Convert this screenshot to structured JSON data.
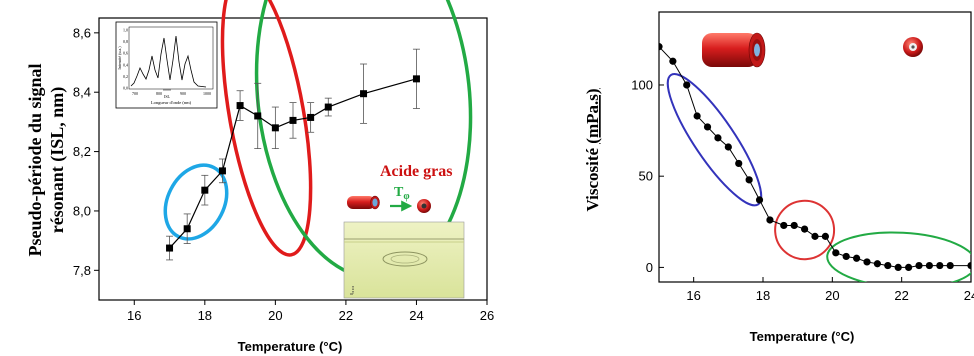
{
  "chart_data": [
    {
      "type": "scatter",
      "title": "",
      "xlabel": "Temperature (°C)",
      "ylabel": "Pseudo-période du signal résonant (ISL, nm)",
      "ylabel_lines": [
        "Pseudo-période du signal",
        "résonant (ISL, nm)"
      ],
      "xlim": [
        15,
        26
      ],
      "ylim": [
        7.7,
        8.65
      ],
      "x_ticks": [
        16,
        18,
        20,
        22,
        24,
        26
      ],
      "y_ticks": [
        7.8,
        8.0,
        8.2,
        8.4,
        8.6
      ],
      "y_tick_labels": [
        "7,8",
        "8,0",
        "8,2",
        "8,4",
        "8,6"
      ],
      "grid": false,
      "series": [
        {
          "color": "#000000",
          "x": [
            17.0,
            17.5,
            18.0,
            18.5,
            19.0,
            19.5,
            20.0,
            20.5,
            21.0,
            21.5,
            22.5,
            24.0
          ],
          "y": [
            7.875,
            7.94,
            8.07,
            8.135,
            8.355,
            8.32,
            8.28,
            8.305,
            8.315,
            8.35,
            8.395,
            8.445
          ],
          "err": [
            0.04,
            0.05,
            0.05,
            0.04,
            0.05,
            0.11,
            0.07,
            0.06,
            0.05,
            0.03,
            0.1,
            0.1
          ]
        }
      ],
      "ellipses": [
        {
          "color": "#1ea7e6",
          "cx": 17.75,
          "cy": 8.03,
          "rx": 1.1,
          "ry": 0.095,
          "angle_deg": -63
        },
        {
          "color": "#e01b1b",
          "cx": 19.75,
          "cy": 8.325,
          "rx": 1.05,
          "ry": 0.48,
          "angle_deg": -10
        },
        {
          "color": "#22aa44",
          "cx": 22.5,
          "cy": 8.39,
          "rx": 3.0,
          "ry": 0.62,
          "angle_deg": -6
        }
      ],
      "annotation": {
        "label": "Acide gras",
        "label_color": "#cc1111",
        "arrow_label": "T",
        "arrow_label_sub": "φ",
        "arrow_color": "#22aa44"
      },
      "inset": {
        "xlabel": "Longueur d'onde (nm)",
        "ylabel": "Intensité (u.a.)",
        "x_ticks": [
          700,
          800,
          900,
          1000
        ],
        "y_ticks": [
          "1,0",
          "0,8",
          "0,6",
          "0,4",
          "0,2",
          "0,0"
        ],
        "marker": "ISL"
      }
    },
    {
      "type": "line",
      "title": "",
      "xlabel": "Temperature (°C)",
      "ylabel": "Viscosité (mPa.s)",
      "ylabel_plain": "Viscosité ",
      "ylabel_unit": "(mPa.s)",
      "xlim": [
        15,
        24
      ],
      "ylim": [
        -8,
        140
      ],
      "x_ticks": [
        16,
        18,
        20,
        22,
        24
      ],
      "x_tick_labels": [
        "16",
        "18",
        "20",
        "22",
        "24"
      ],
      "y_ticks": [
        0,
        50,
        100
      ],
      "grid": false,
      "series": [
        {
          "color": "#000000",
          "x": [
            15.0,
            15.4,
            15.8,
            16.1,
            16.4,
            16.7,
            17.0,
            17.3,
            17.6,
            17.9,
            18.2,
            18.6,
            18.9,
            19.2,
            19.5,
            19.8,
            20.1,
            20.4,
            20.7,
            21.0,
            21.3,
            21.6,
            21.9,
            22.2,
            22.5,
            22.8,
            23.1,
            23.4,
            24.0
          ],
          "y": [
            121,
            113,
            100,
            83,
            77,
            71,
            66,
            57,
            48,
            37,
            26,
            23,
            23,
            21,
            17,
            17,
            8,
            6,
            5,
            3,
            2,
            1,
            0,
            0,
            1,
            1,
            1,
            1,
            1
          ]
        }
      ],
      "ellipses": [
        {
          "color": "#3333bb",
          "cx": 16.6,
          "cy": 70,
          "rx": 2.25,
          "ry": 11,
          "angle_deg": 56
        },
        {
          "color": "#dd3333",
          "cx": 19.2,
          "cy": 20.5,
          "rx": 0.85,
          "ry": 16,
          "angle_deg": -4
        },
        {
          "color": "#22aa44",
          "cx": 22.0,
          "cy": 4,
          "rx": 2.15,
          "ry": 15,
          "angle_deg": 3
        }
      ]
    }
  ]
}
